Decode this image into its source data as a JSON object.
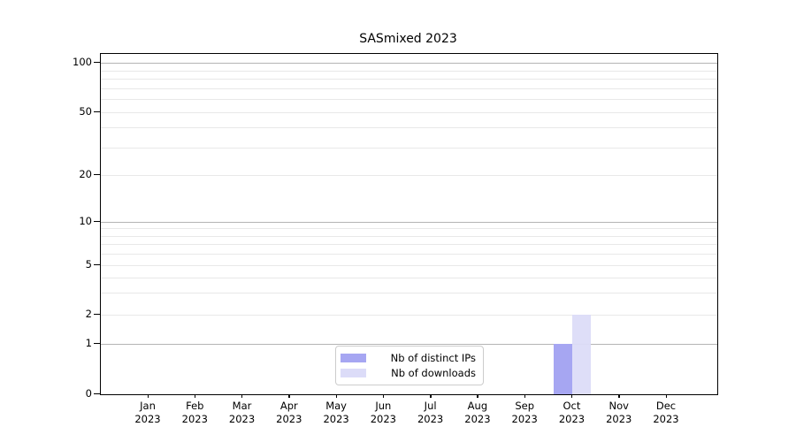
{
  "title": "SASmixed 2023",
  "chart_data": {
    "type": "bar",
    "title": "SASmixed 2023",
    "categories": [
      "Jan",
      "Feb",
      "Mar",
      "Apr",
      "May",
      "Jun",
      "Jul",
      "Aug",
      "Sep",
      "Oct",
      "Nov",
      "Dec"
    ],
    "category_year": "2023",
    "series": [
      {
        "name": "Nb of distinct IPs",
        "color": "#a6a6f2",
        "values": [
          0,
          0,
          0,
          0,
          0,
          0,
          0,
          0,
          0,
          1,
          0,
          0
        ]
      },
      {
        "name": "Nb of downloads",
        "color": "#dcdcf8",
        "values": [
          0,
          0,
          0,
          0,
          0,
          0,
          0,
          0,
          0,
          2,
          0,
          0
        ]
      }
    ],
    "yscale": "symlog",
    "ylim": [
      0,
      112
    ],
    "ytick_values": [
      0,
      1,
      2,
      5,
      10,
      20,
      50,
      100
    ],
    "ytick_labels": [
      "0",
      "1",
      "2",
      "5",
      "10",
      "20",
      "50",
      "100"
    ],
    "major_grid_values": [
      1,
      10,
      100
    ],
    "minor_grid_values": [
      2,
      3,
      4,
      5,
      6,
      7,
      8,
      9,
      20,
      30,
      40,
      50,
      60,
      70,
      80,
      90
    ],
    "grid": true,
    "legend": {
      "position": "lower center",
      "entries": [
        {
          "label": "Nb of distinct IPs",
          "color": "#a6a6f2"
        },
        {
          "label": "Nb of downloads",
          "color": "#dcdcf8"
        }
      ]
    }
  }
}
